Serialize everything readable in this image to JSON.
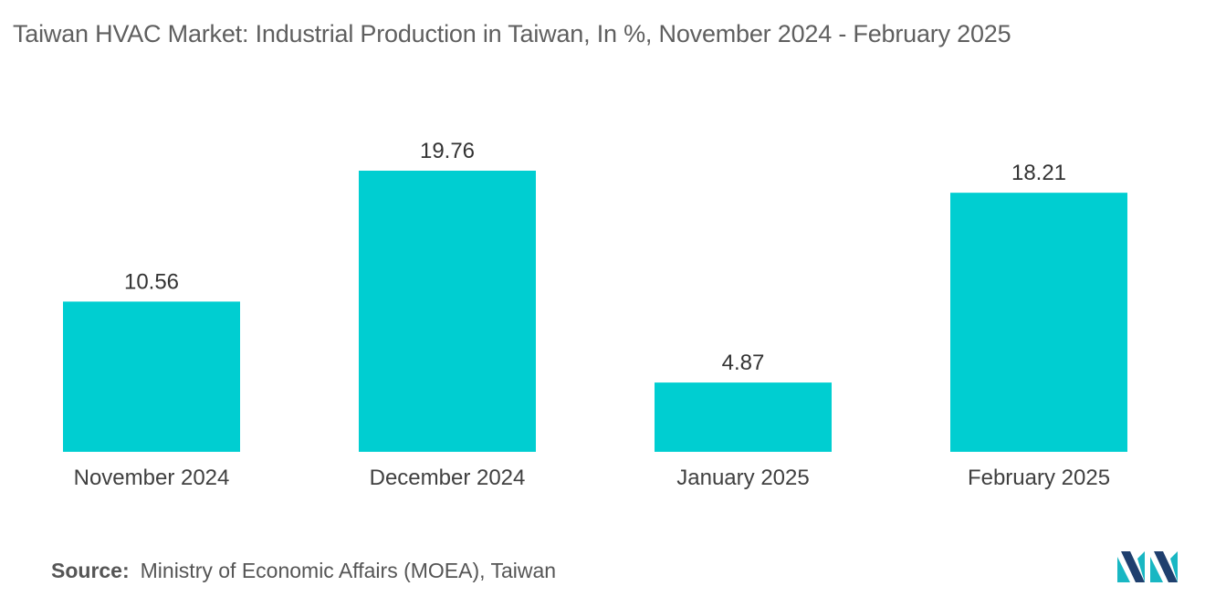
{
  "title": "Taiwan HVAC Market: Industrial Production in Taiwan, In %, November 2024 - February 2025",
  "source": {
    "label": "Source:",
    "text": "Ministry of Economic Affairs (MOEA), Taiwan"
  },
  "colors": {
    "bar": "#00CED1",
    "logo_dark": "#1f3f6e",
    "logo_light": "#19b7c3"
  },
  "logo_icon": "mordor-intelligence-logo",
  "chart_data": {
    "type": "bar",
    "title": "Taiwan HVAC Market: Industrial Production in Taiwan, In %, November 2024 - February 2025",
    "categories": [
      "November 2024",
      "December 2024",
      "January 2025",
      "February 2025"
    ],
    "values": [
      10.56,
      19.76,
      4.87,
      18.21
    ],
    "data_labels": [
      "10.56",
      "19.76",
      "4.87",
      "18.21"
    ],
    "xlabel": "",
    "ylabel": "",
    "ylim": [
      0,
      19.76
    ],
    "grid": false,
    "legend": "none"
  }
}
